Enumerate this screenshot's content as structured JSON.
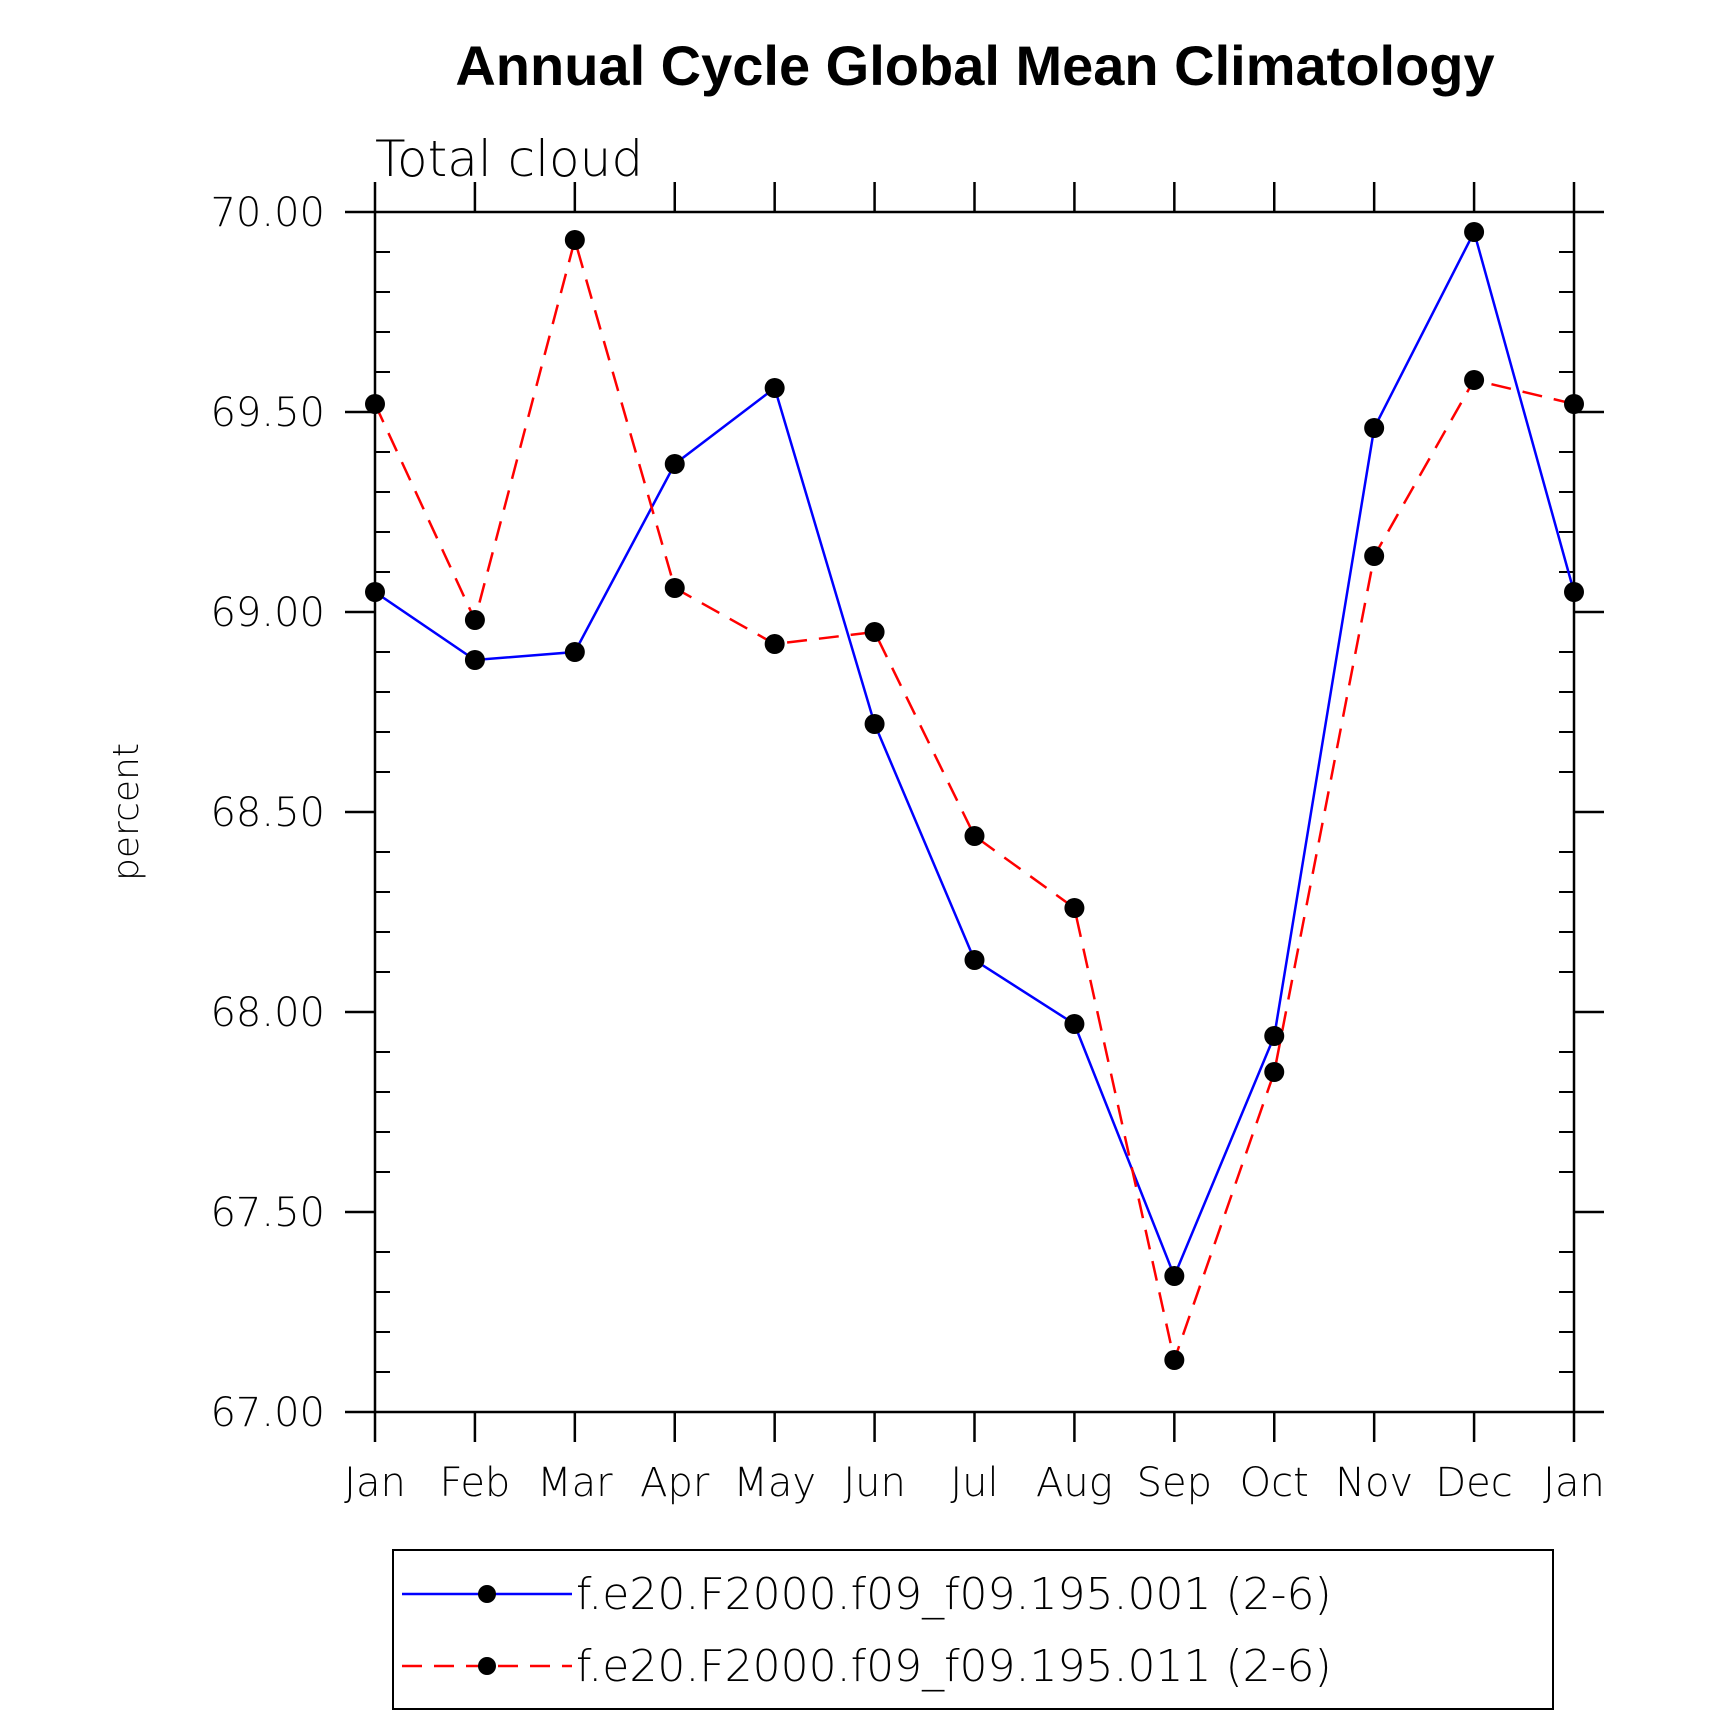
{
  "chart_data": {
    "type": "line",
    "title": "Annual Cycle Global Mean Climatology",
    "subtitle": "Total cloud",
    "xlabel": "",
    "ylabel": "percent",
    "ylim": [
      67.0,
      70.0
    ],
    "ytick_labels": [
      "67.00",
      "67.50",
      "68.00",
      "68.50",
      "69.00",
      "69.50",
      "70.00"
    ],
    "categories": [
      "Jan",
      "Feb",
      "Mar",
      "Apr",
      "May",
      "Jun",
      "Jul",
      "Aug",
      "Sep",
      "Oct",
      "Nov",
      "Dec",
      "Jan"
    ],
    "legend_position": "bottom",
    "series": [
      {
        "name": "f.e20.F2000.f09_f09.195.001 (2-6)",
        "color": "#0000ff",
        "dash": "solid",
        "values": [
          69.05,
          68.88,
          68.9,
          69.37,
          69.56,
          68.72,
          68.13,
          67.97,
          67.34,
          67.94,
          69.46,
          69.95,
          69.05
        ]
      },
      {
        "name": "f.e20.F2000.f09_f09.195.011 (2-6)",
        "color": "#ff0000",
        "dash": "dashed",
        "values": [
          69.52,
          68.98,
          69.93,
          69.06,
          68.92,
          68.95,
          68.44,
          68.26,
          67.13,
          67.85,
          69.14,
          69.58,
          69.52
        ]
      }
    ]
  }
}
